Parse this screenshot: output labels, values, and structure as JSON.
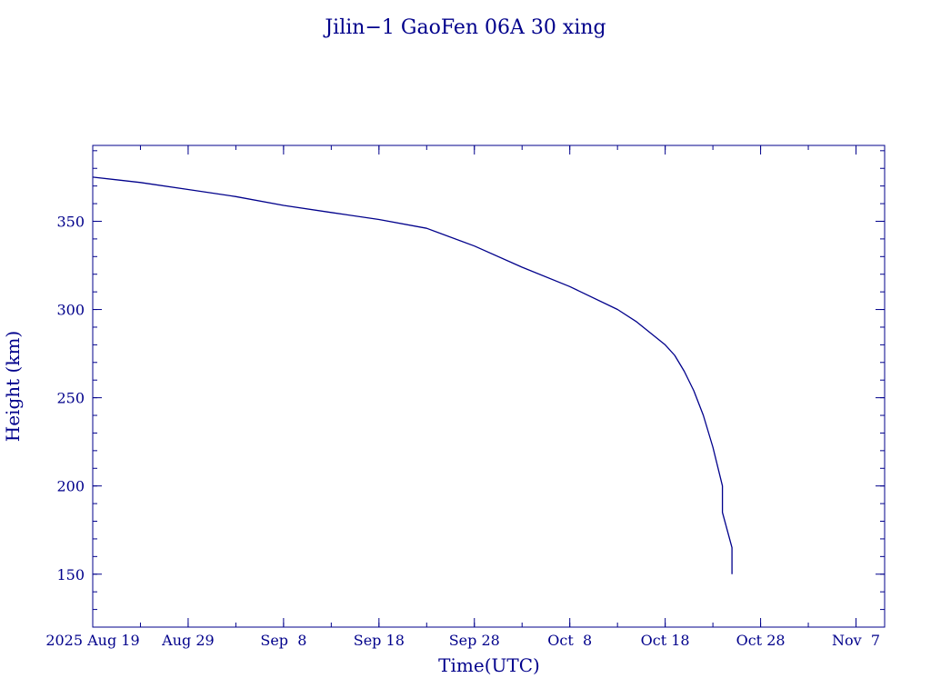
{
  "chart_data": {
    "type": "line",
    "title": "Jilin−1 GaoFen 06A 30 xing",
    "xlabel": "Time(UTC)",
    "ylabel": "Height (km)",
    "x_scale": "time",
    "xlim": [
      "2025-08-19",
      "2025-11-10"
    ],
    "ylim": [
      120,
      393
    ],
    "grid": false,
    "colors": {
      "axes": "#00008b",
      "line": "#00008b",
      "text": "#00008b"
    },
    "x_ticks": [
      {
        "label": "2025 Aug 19",
        "date": "2025-08-19"
      },
      {
        "label": "Aug 29",
        "date": "2025-08-29"
      },
      {
        "label": "Sep  8",
        "date": "2025-09-08"
      },
      {
        "label": "Sep 18",
        "date": "2025-09-18"
      },
      {
        "label": "Sep 28",
        "date": "2025-09-28"
      },
      {
        "label": "Oct  8",
        "date": "2025-10-08"
      },
      {
        "label": "Oct 18",
        "date": "2025-10-18"
      },
      {
        "label": "Oct 28",
        "date": "2025-10-28"
      },
      {
        "label": "Nov  7",
        "date": "2025-11-07"
      }
    ],
    "y_ticks": [
      150,
      200,
      250,
      300,
      350
    ],
    "series": [
      {
        "points": [
          [
            "2025-08-19",
            375
          ],
          [
            "2025-08-24",
            372
          ],
          [
            "2025-08-29",
            368
          ],
          [
            "2025-09-03",
            364
          ],
          [
            "2025-09-08",
            359
          ],
          [
            "2025-09-13",
            355
          ],
          [
            "2025-09-18",
            351
          ],
          [
            "2025-09-23",
            346
          ],
          [
            "2025-09-28",
            336
          ],
          [
            "2025-10-03",
            324
          ],
          [
            "2025-10-08",
            313
          ],
          [
            "2025-10-13",
            300
          ],
          [
            "2025-10-15",
            293
          ],
          [
            "2025-10-18",
            280
          ],
          [
            "2025-10-19",
            274
          ],
          [
            "2025-10-20",
            265
          ],
          [
            "2025-10-21",
            254
          ],
          [
            "2025-10-22",
            240
          ],
          [
            "2025-10-23",
            222
          ],
          [
            "2025-10-24",
            200
          ],
          [
            "2025-10-24",
            185
          ],
          [
            "2025-10-25",
            165
          ],
          [
            "2025-10-25",
            150
          ]
        ]
      }
    ]
  }
}
